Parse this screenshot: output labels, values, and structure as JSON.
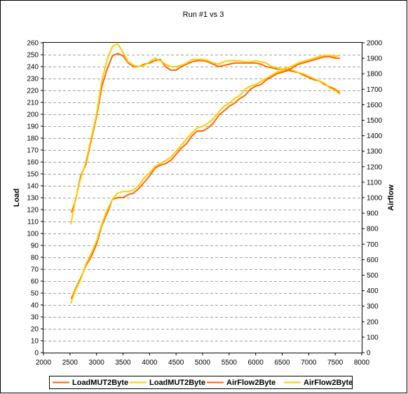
{
  "chart_data": {
    "type": "line",
    "title": "Run #1 vs 3",
    "xlabel": "",
    "ylabel": "Load",
    "y2label": "Airflow",
    "xlim": [
      2000,
      8000
    ],
    "ylim": [
      0,
      260
    ],
    "y2lim": [
      0,
      2000
    ],
    "xticks": [
      "2000",
      "2500",
      "3000",
      "3500",
      "4000",
      "4500",
      "5000",
      "5500",
      "6000",
      "6500",
      "7000",
      "7500",
      "8000"
    ],
    "yticks": [
      "0",
      "10",
      "20",
      "30",
      "40",
      "50",
      "60",
      "70",
      "80",
      "90",
      "100",
      "110",
      "120",
      "130",
      "140",
      "150",
      "160",
      "170",
      "180",
      "190",
      "200",
      "210",
      "220",
      "230",
      "240",
      "250",
      "260"
    ],
    "y2ticks": [
      "0",
      "100",
      "200",
      "300",
      "400",
      "500",
      "600",
      "700",
      "800",
      "900",
      "1000",
      "1100",
      "1200",
      "1300",
      "1400",
      "1500",
      "1600",
      "1700",
      "1800",
      "1900",
      "2000"
    ],
    "grid": true,
    "legend_position": "bottom",
    "series": [
      {
        "name": "LoadMUT2Byte",
        "axis": "left",
        "color": "#ff6600",
        "x": [
          2530,
          2600,
          2700,
          2800,
          2900,
          3000,
          3100,
          3200,
          3300,
          3400,
          3500,
          3600,
          3700,
          3800,
          3900,
          4000,
          4100,
          4200,
          4300,
          4400,
          4500,
          4600,
          4700,
          4800,
          4900,
          5000,
          5100,
          5200,
          5300,
          5400,
          5500,
          5600,
          5700,
          5800,
          5900,
          6000,
          6100,
          6200,
          6300,
          6400,
          6500,
          6600,
          6700,
          6800,
          6900,
          7000,
          7100,
          7200,
          7300,
          7400,
          7500,
          7580
        ],
        "values": [
          118,
          127,
          148,
          158,
          178,
          198,
          223,
          238,
          249,
          251,
          249,
          243,
          240,
          240,
          242,
          243,
          245,
          246,
          240,
          237,
          237,
          240,
          242,
          244,
          245,
          245,
          244,
          242,
          240,
          241,
          242,
          243,
          243,
          243,
          243,
          243,
          242,
          240,
          239,
          238,
          238,
          237,
          236,
          235,
          233,
          231,
          229,
          228,
          225,
          223,
          221,
          218
        ]
      },
      {
        "name": "LoadMUT2Byte",
        "axis": "left",
        "color": "#ffcc00",
        "x": [
          2520,
          2600,
          2700,
          2800,
          2900,
          3000,
          3100,
          3200,
          3300,
          3400,
          3500,
          3600,
          3700,
          3800,
          3900,
          4000,
          4100,
          4200,
          4300,
          4400,
          4500,
          4600,
          4700,
          4800,
          4900,
          5000,
          5100,
          5200,
          5300,
          5400,
          5500,
          5600,
          5700,
          5800,
          5900,
          6000,
          6100,
          6200,
          6300,
          6400,
          6500,
          6600,
          6700,
          6800,
          6900,
          7000,
          7100,
          7200,
          7300,
          7400,
          7500,
          7580
        ],
        "values": [
          108,
          128,
          146,
          160,
          180,
          200,
          228,
          246,
          257,
          259,
          252,
          244,
          241,
          240,
          241,
          244,
          247,
          245,
          242,
          240,
          240,
          241,
          243,
          246,
          246,
          246,
          245,
          243,
          242,
          244,
          245,
          245,
          245,
          244,
          244,
          245,
          244,
          243,
          240,
          239,
          238,
          239,
          237,
          235,
          234,
          232,
          230,
          228,
          226,
          222,
          220,
          217
        ]
      },
      {
        "name": "AirFlow2Byte",
        "axis": "right",
        "color": "#ff6600",
        "x": [
          2530,
          2600,
          2700,
          2800,
          2900,
          3000,
          3100,
          3200,
          3300,
          3400,
          3500,
          3600,
          3700,
          3800,
          3900,
          4000,
          4100,
          4200,
          4300,
          4400,
          4500,
          4600,
          4700,
          4800,
          4900,
          5000,
          5100,
          5200,
          5300,
          5400,
          5500,
          5600,
          5700,
          5800,
          5900,
          6000,
          6100,
          6200,
          6300,
          6400,
          6500,
          6600,
          6700,
          6800,
          6900,
          7000,
          7100,
          7200,
          7300,
          7400,
          7500,
          7580
        ],
        "values": [
          350,
          410,
          480,
          560,
          620,
          700,
          820,
          900,
          990,
          1000,
          1000,
          1020,
          1030,
          1060,
          1100,
          1140,
          1190,
          1210,
          1220,
          1240,
          1280,
          1320,
          1350,
          1400,
          1430,
          1430,
          1450,
          1480,
          1530,
          1560,
          1590,
          1610,
          1640,
          1660,
          1700,
          1720,
          1730,
          1760,
          1780,
          1800,
          1810,
          1820,
          1840,
          1860,
          1870,
          1880,
          1890,
          1900,
          1910,
          1910,
          1900,
          1900
        ]
      },
      {
        "name": "AirFlow2Byte",
        "axis": "right",
        "color": "#ffcc00",
        "x": [
          2520,
          2600,
          2700,
          2800,
          2900,
          3000,
          3100,
          3200,
          3300,
          3400,
          3500,
          3600,
          3700,
          3800,
          3900,
          4000,
          4100,
          4200,
          4300,
          4400,
          4500,
          4600,
          4700,
          4800,
          4900,
          5000,
          5100,
          5200,
          5300,
          5400,
          5500,
          5600,
          5700,
          5800,
          5900,
          6000,
          6100,
          6200,
          6300,
          6400,
          6500,
          6600,
          6700,
          6800,
          6900,
          7000,
          7100,
          7200,
          7300,
          7400,
          7500,
          7580
        ],
        "values": [
          320,
          400,
          470,
          570,
          640,
          720,
          830,
          920,
          990,
          1030,
          1040,
          1040,
          1050,
          1080,
          1130,
          1160,
          1200,
          1220,
          1240,
          1260,
          1300,
          1340,
          1380,
          1420,
          1450,
          1460,
          1480,
          1510,
          1550,
          1590,
          1610,
          1640,
          1660,
          1700,
          1720,
          1730,
          1750,
          1770,
          1790,
          1810,
          1820,
          1840,
          1850,
          1870,
          1880,
          1890,
          1900,
          1910,
          1920,
          1920,
          1910,
          1920
        ]
      }
    ]
  }
}
